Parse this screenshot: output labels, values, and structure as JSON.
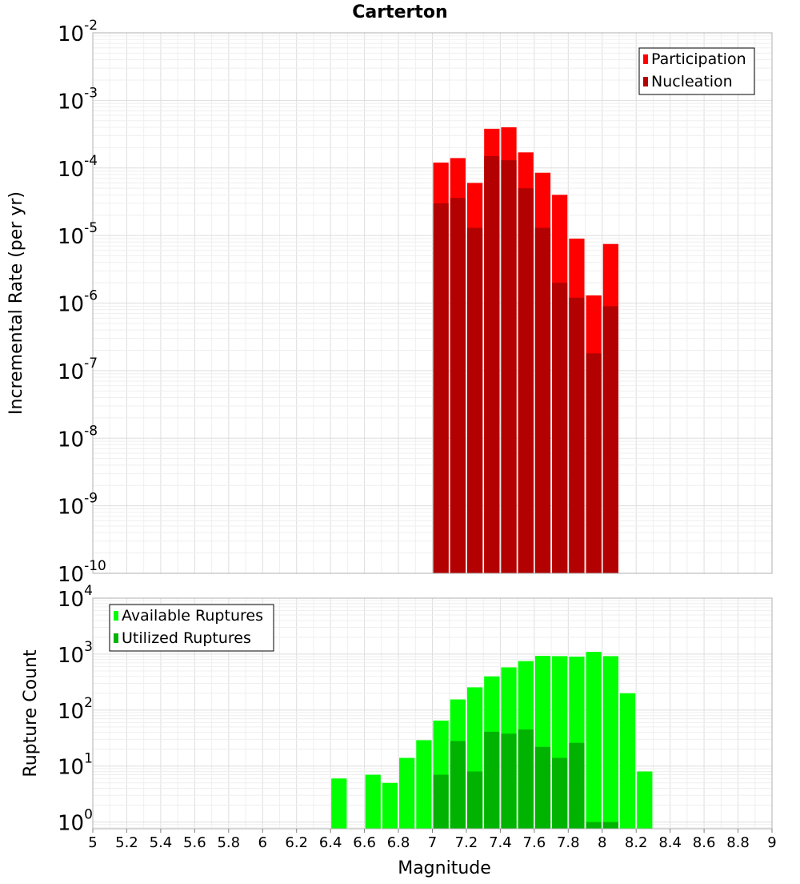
{
  "chart_data": [
    {
      "type": "bar",
      "scale": "log",
      "title": "Carterton",
      "xlabel": "",
      "ylabel": "Incremental Rate (per yr)",
      "xlim": [
        5,
        9
      ],
      "ylim_exponent": [
        -10,
        -2
      ],
      "bin_width": 0.1,
      "x": [
        7.05,
        7.15,
        7.25,
        7.35,
        7.45,
        7.55,
        7.65,
        7.75,
        7.85,
        7.95,
        8.05
      ],
      "series": [
        {
          "name": "Participation",
          "color": "#ff0000",
          "values": [
            0.00012,
            0.00014,
            6e-05,
            0.00038,
            0.0004,
            0.00017,
            8.5e-05,
            4e-05,
            9e-06,
            1.3e-06,
            7.5e-06
          ]
        },
        {
          "name": "Nucleation",
          "color": "#b30000",
          "values": [
            3e-05,
            3.6e-05,
            1.3e-05,
            0.00015,
            0.00013,
            5e-05,
            1.3e-05,
            2e-06,
            1.2e-06,
            1.8e-07,
            9e-07
          ]
        }
      ],
      "legend": {
        "position": "top-right",
        "entries": [
          "Participation",
          "Nucleation"
        ]
      },
      "yticks": [
        {
          "base": "10",
          "exp": "-10"
        },
        {
          "base": "10",
          "exp": "-9"
        },
        {
          "base": "10",
          "exp": "-8"
        },
        {
          "base": "10",
          "exp": "-7"
        },
        {
          "base": "10",
          "exp": "-6"
        },
        {
          "base": "10",
          "exp": "-5"
        },
        {
          "base": "10",
          "exp": "-4"
        },
        {
          "base": "10",
          "exp": "-3"
        },
        {
          "base": "10",
          "exp": "-2"
        }
      ]
    },
    {
      "type": "bar",
      "scale": "log",
      "title": "",
      "xlabel": "Magnitude",
      "ylabel": "Rupture Count",
      "xlim": [
        5,
        9
      ],
      "ylim_exponent": [
        -0.12,
        4
      ],
      "bin_width": 0.1,
      "x": [
        6.45,
        6.55,
        6.65,
        6.75,
        6.85,
        6.95,
        7.05,
        7.15,
        7.25,
        7.35,
        7.45,
        7.55,
        7.65,
        7.75,
        7.85,
        7.95,
        8.05,
        8.15,
        8.25
      ],
      "series": [
        {
          "name": "Available Ruptures",
          "color": "#00ff00",
          "values": [
            6,
            0,
            7,
            5,
            14,
            29,
            65,
            155,
            255,
            400,
            580,
            750,
            930,
            920,
            900,
            1100,
            920,
            200,
            8
          ]
        },
        {
          "name": "Utilized Ruptures",
          "color": "#00b300",
          "values": [
            0,
            0,
            0,
            0,
            0,
            0,
            7,
            28,
            8,
            41,
            38,
            45,
            22,
            14,
            26,
            1,
            1,
            0,
            0
          ]
        }
      ],
      "legend": {
        "position": "top-left",
        "entries": [
          "Available Ruptures",
          "Utilized Ruptures"
        ]
      },
      "xticks": [
        "5",
        "5.2",
        "5.4",
        "5.6",
        "5.8",
        "6",
        "6.2",
        "6.4",
        "6.6",
        "6.8",
        "7",
        "7.2",
        "7.4",
        "7.6",
        "7.8",
        "8",
        "8.2",
        "8.4",
        "8.6",
        "8.8",
        "9"
      ],
      "yticks": [
        {
          "base": "10",
          "exp": "0"
        },
        {
          "base": "10",
          "exp": "1"
        },
        {
          "base": "10",
          "exp": "2"
        },
        {
          "base": "10",
          "exp": "3"
        },
        {
          "base": "10",
          "exp": "4"
        }
      ]
    }
  ]
}
